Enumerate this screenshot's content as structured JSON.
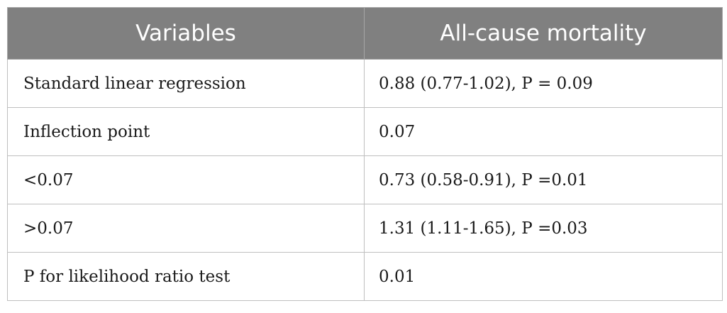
{
  "table": {
    "headers": [
      "Variables",
      "All-cause mortality"
    ],
    "rows": [
      [
        "Standard linear regression",
        "0.88 (0.77-1.02), P = 0.09"
      ],
      [
        "Inflection point",
        "0.07"
      ],
      [
        "<0.07",
        "0.73 (0.58-0.91), P =0.01"
      ],
      [
        ">0.07",
        "1.31 (1.11-1.65), P =0.03"
      ],
      [
        "P for likelihood ratio test",
        "0.01"
      ]
    ]
  }
}
